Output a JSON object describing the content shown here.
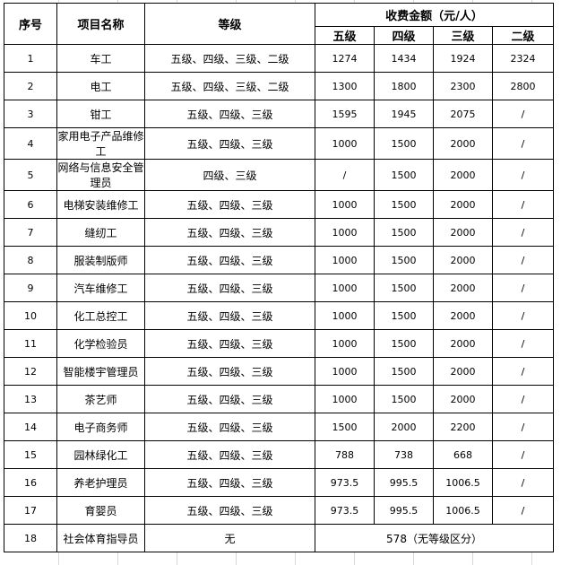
{
  "headers": {
    "index": "序号",
    "name": "项目名称",
    "levels": "等级",
    "fee": "收费金额（元/人）",
    "sub": [
      "五级",
      "四级",
      "三级",
      "二级"
    ]
  },
  "rows": [
    {
      "no": "1",
      "name": "车工",
      "levels": "五级、四级、三级、二级",
      "fees": [
        "1274",
        "1434",
        "1924",
        "2324"
      ]
    },
    {
      "no": "2",
      "name": "电工",
      "levels": "五级、四级、三级、二级",
      "fees": [
        "1300",
        "1800",
        "2300",
        "2800"
      ]
    },
    {
      "no": "3",
      "name": "钳工",
      "levels": "五级、四级、三级",
      "fees": [
        "1595",
        "1945",
        "2075",
        "/"
      ]
    },
    {
      "no": "4",
      "name": "家用电子产品维修工",
      "levels": "五级、四级、三级",
      "fees": [
        "1000",
        "1500",
        "2000",
        "/"
      ]
    },
    {
      "no": "5",
      "name": "网络与信息安全管理员",
      "levels": "四级、三级",
      "fees": [
        "/",
        "1500",
        "2000",
        "/"
      ]
    },
    {
      "no": "6",
      "name": "电梯安装维修工",
      "levels": "五级、四级、三级",
      "fees": [
        "1000",
        "1500",
        "2000",
        "/"
      ]
    },
    {
      "no": "7",
      "name": "缝纫工",
      "levels": "五级、四级、三级",
      "fees": [
        "1000",
        "1500",
        "2000",
        "/"
      ]
    },
    {
      "no": "8",
      "name": "服装制版师",
      "levels": "五级、四级、三级",
      "fees": [
        "1000",
        "1500",
        "2000",
        "/"
      ]
    },
    {
      "no": "9",
      "name": "汽车维修工",
      "levels": "五级、四级、三级",
      "fees": [
        "1000",
        "1500",
        "2000",
        "/"
      ]
    },
    {
      "no": "10",
      "name": "化工总控工",
      "levels": "五级、四级、三级",
      "fees": [
        "1000",
        "1500",
        "2000",
        "/"
      ]
    },
    {
      "no": "11",
      "name": "化学检验员",
      "levels": "五级、四级、三级",
      "fees": [
        "1000",
        "1500",
        "2000",
        "/"
      ]
    },
    {
      "no": "12",
      "name": "智能楼宇管理员",
      "levels": "五级、四级、三级",
      "fees": [
        "1000",
        "1500",
        "2000",
        "/"
      ]
    },
    {
      "no": "13",
      "name": "茶艺师",
      "levels": "五级、四级、三级",
      "fees": [
        "1000",
        "1500",
        "2000",
        "/"
      ]
    },
    {
      "no": "14",
      "name": "电子商务师",
      "levels": "五级、四级、三级",
      "fees": [
        "1500",
        "2000",
        "2200",
        "/"
      ]
    },
    {
      "no": "15",
      "name": "园林绿化工",
      "levels": "五级、四级、三级",
      "fees": [
        "788",
        "738",
        "668",
        "/"
      ]
    },
    {
      "no": "16",
      "name": "养老护理员",
      "levels": "五级、四级、三级",
      "fees": [
        "973.5",
        "995.5",
        "1006.5",
        "/"
      ]
    },
    {
      "no": "17",
      "name": "育婴员",
      "levels": "五级、四级、三级",
      "fees": [
        "973.5",
        "995.5",
        "1006.5",
        "/"
      ]
    }
  ],
  "last_row": {
    "no": "18",
    "name": "社会体育指导员",
    "levels": "无",
    "fee": "578（无等级区分）"
  }
}
